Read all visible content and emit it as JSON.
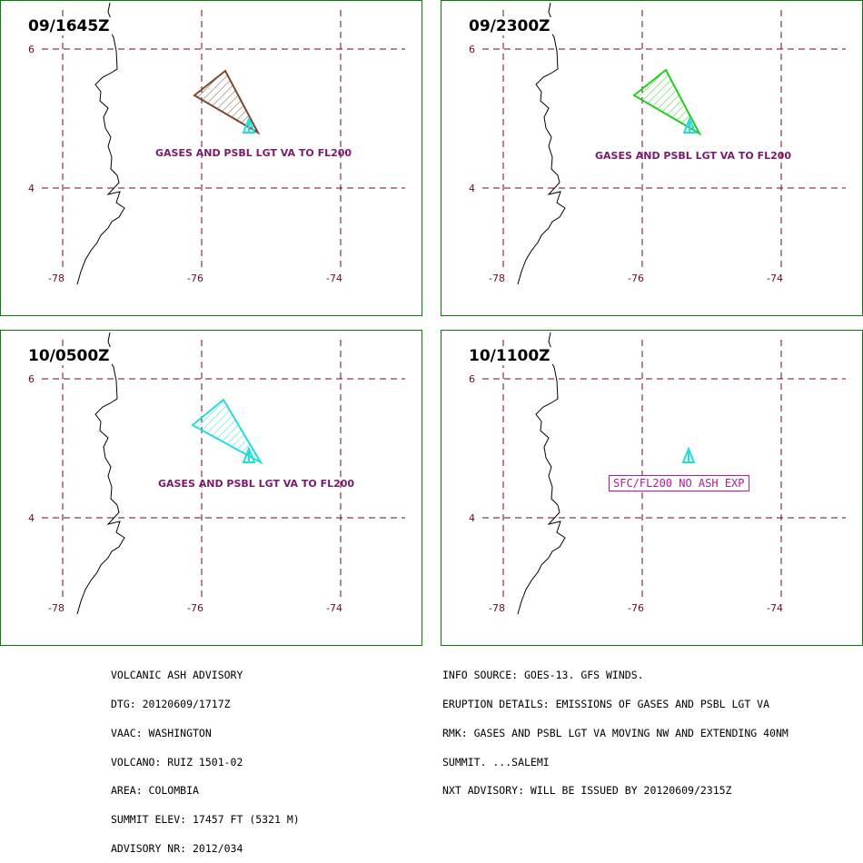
{
  "panels": [
    {
      "time": "09/1645Z",
      "text": "GASES AND PSBL LGT VA TO FL200",
      "color": "#7a4a2e",
      "hatch": true
    },
    {
      "time": "09/2300Z",
      "text": "GASES AND PSBL LGT VA TO FL200",
      "color": "#22cc22",
      "hatch": true
    },
    {
      "time": "10/0500Z",
      "text": "GASES AND PSBL LGT VA TO FL200",
      "color": "#22dddd",
      "hatch": true
    },
    {
      "time": "10/1100Z",
      "text": "SFC/FL200 NO ASH EXP",
      "color": "#b4169e",
      "hatch": false
    }
  ],
  "axes": {
    "lat_labels": [
      "6",
      "4"
    ],
    "lon_labels": [
      "-78",
      "-76",
      "-74"
    ]
  },
  "colors": {
    "grid": "#6b0a1a",
    "border": "#0a7a0a",
    "volcano": "#22dddd"
  },
  "advisory_left": [
    "VOLCANIC ASH ADVISORY",
    "DTG: 20120609/1717Z",
    "VAAC: WASHINGTON",
    "VOLCANO: RUIZ 1501-02",
    "AREA: COLOMBIA",
    "SUMMIT ELEV: 17457 FT (5321 M)",
    "ADVISORY NR: 2012/034"
  ],
  "advisory_right": [
    "INFO SOURCE: GOES-13. GFS WINDS.",
    "ERUPTION DETAILS: EMISSIONS OF GASES AND PSBL LGT VA",
    "RMK: GASES AND PSBL LGT VA MOVING NW AND EXTENDING 40NM",
    "SUMMIT. ...SALEMI",
    "NXT ADVISORY: WILL BE ISSUED BY 20120609/2315Z"
  ]
}
